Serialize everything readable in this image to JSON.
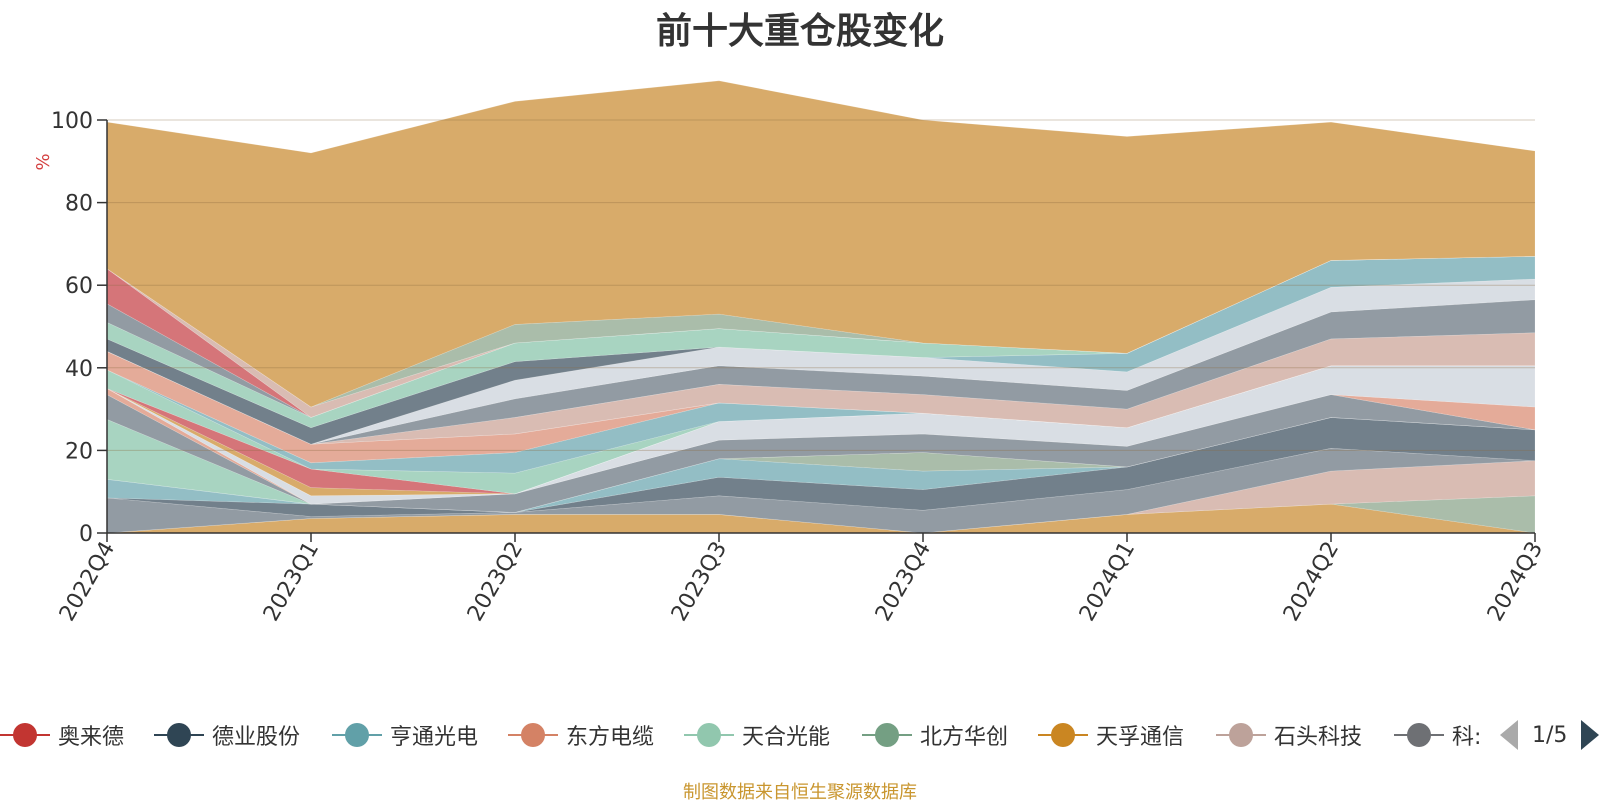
{
  "chart_data": {
    "type": "area",
    "stacked": true,
    "title": "前十大重仓股变化",
    "ylabel": "%",
    "ylim": [
      0,
      100
    ],
    "yticks": [
      0,
      20,
      40,
      60,
      80,
      100
    ],
    "categories": [
      "2022Q4",
      "2023Q1",
      "2023Q2",
      "2023Q3",
      "2023Q4",
      "2024Q1",
      "2024Q2",
      "2024Q3"
    ],
    "series": [
      {
        "name": "",
        "color": "#d7a865",
        "values": [
          0,
          3.5,
          4.5,
          4.5,
          0,
          4.5,
          7,
          0
        ]
      },
      {
        "name": "",
        "color": "#a7bba7",
        "values": [
          0,
          0,
          0,
          0,
          0,
          0,
          0,
          9
        ]
      },
      {
        "name": "",
        "color": "#d8bab1",
        "values": [
          0,
          0,
          0,
          0,
          0,
          0,
          8,
          8.5
        ]
      },
      {
        "name": "",
        "color": "#8e98a0",
        "values": [
          8.5,
          0.5,
          0.5,
          4.5,
          5.5,
          6,
          5.5,
          0
        ]
      },
      {
        "name": "",
        "color": "#6d7c87",
        "values": [
          0,
          3,
          0,
          4.5,
          5,
          5.5,
          7.5,
          7.5
        ]
      },
      {
        "name": "",
        "color": "#8fbcc3",
        "values": [
          4.5,
          0,
          0,
          4.5,
          4.5,
          0,
          0,
          0
        ]
      },
      {
        "name": "",
        "color": "#a7bba7",
        "values": [
          0,
          0,
          0,
          0,
          4.5,
          0,
          0,
          0
        ]
      },
      {
        "name": "",
        "color": "#a5d3bf",
        "values": [
          14.5,
          0,
          0,
          0,
          0,
          0,
          0,
          0
        ]
      },
      {
        "name": "",
        "color": "#8e98a0",
        "values": [
          6,
          0,
          4.5,
          4.5,
          4.5,
          5,
          5.5,
          0
        ]
      },
      {
        "name": "",
        "color": "#e3a896",
        "values": [
          1.5,
          0,
          0,
          0,
          0,
          0,
          0,
          5.5
        ]
      },
      {
        "name": "",
        "color": "#d8dde3",
        "values": [
          0,
          2,
          0,
          4.5,
          5,
          4.5,
          7,
          10
        ]
      },
      {
        "name": "",
        "color": "#d8bab1",
        "values": [
          0,
          0,
          0,
          0,
          0,
          0,
          0,
          0
        ]
      },
      {
        "name": "",
        "color": "#d7a865",
        "values": [
          0,
          2,
          0,
          0,
          0,
          0,
          0,
          0
        ]
      },
      {
        "name": "",
        "color": "#d47175",
        "values": [
          0,
          4.5,
          0,
          0,
          0,
          0,
          0,
          0
        ]
      },
      {
        "name": "",
        "color": "#a5d3bf",
        "values": [
          4.5,
          0,
          5,
          0,
          0,
          0,
          0,
          0
        ]
      },
      {
        "name": "",
        "color": "#8fbcc3",
        "values": [
          0,
          1.5,
          5,
          4.5,
          0,
          0,
          0,
          0
        ]
      },
      {
        "name": "",
        "color": "#e3a896",
        "values": [
          4.5,
          4.5,
          4.5,
          0,
          0,
          0,
          0,
          0
        ]
      },
      {
        "name": "",
        "color": "#d47175",
        "values": [
          0,
          0,
          0,
          0,
          0,
          0,
          0,
          0
        ]
      },
      {
        "name": "",
        "color": "#d8bab1",
        "values": [
          0,
          0,
          4,
          4.5,
          4.5,
          4.5,
          6.5,
          8
        ]
      },
      {
        "name": "",
        "color": "#8e98a0",
        "values": [
          0,
          0,
          4.5,
          4.5,
          4.5,
          4.5,
          6.5,
          8
        ]
      },
      {
        "name": "",
        "color": "#d8dde3",
        "values": [
          0,
          0,
          4.5,
          4.5,
          4.5,
          4.5,
          6,
          5
        ]
      },
      {
        "name": "",
        "color": "#8fbcc3",
        "values": [
          0,
          0,
          0,
          0,
          0,
          4.5,
          6.5,
          5.5
        ]
      },
      {
        "name": "",
        "color": "#6d7c87",
        "values": [
          3,
          4,
          4.5,
          0,
          0,
          0,
          0,
          0
        ]
      },
      {
        "name": "",
        "color": "#a5d3bf",
        "values": [
          4,
          2.5,
          4.5,
          4.5,
          3.5,
          0,
          0,
          0
        ]
      },
      {
        "name": "",
        "color": "#8e98a0",
        "values": [
          4.5,
          0,
          0,
          0,
          0,
          0,
          0,
          0
        ]
      },
      {
        "name": "",
        "color": "#d47175",
        "values": [
          8.5,
          0,
          0,
          0,
          0,
          0,
          0,
          0
        ]
      },
      {
        "name": "",
        "color": "#d8bab1",
        "values": [
          0,
          2.5,
          0,
          0,
          0,
          0,
          0,
          0
        ]
      },
      {
        "name": "",
        "color": "#a7bba7",
        "values": [
          0,
          0,
          4.5,
          3.5,
          0,
          0,
          0,
          0
        ]
      },
      {
        "name": "",
        "color": "#d7a865",
        "values": [
          35.5,
          61.5,
          54,
          56.5,
          54,
          52.5,
          33.5,
          25.5
        ]
      }
    ],
    "legend": [
      {
        "label": "奥来德",
        "color": "#c23531"
      },
      {
        "label": "德业股份",
        "color": "#2f4554"
      },
      {
        "label": "亨通光电",
        "color": "#61a0a8"
      },
      {
        "label": "东方电缆",
        "color": "#d48265"
      },
      {
        "label": "天合光能",
        "color": "#91c7ae"
      },
      {
        "label": "北方华创",
        "color": "#749f83"
      },
      {
        "label": "天孚通信",
        "color": "#ca8622"
      },
      {
        "label": "石头科技",
        "color": "#bda29a"
      },
      {
        "label": "科:",
        "color": "#6e7074"
      }
    ],
    "legend_position": "bottom",
    "legend_page": "1/5",
    "grid": true
  },
  "source_note": "制图数据来自恒生聚源数据库"
}
